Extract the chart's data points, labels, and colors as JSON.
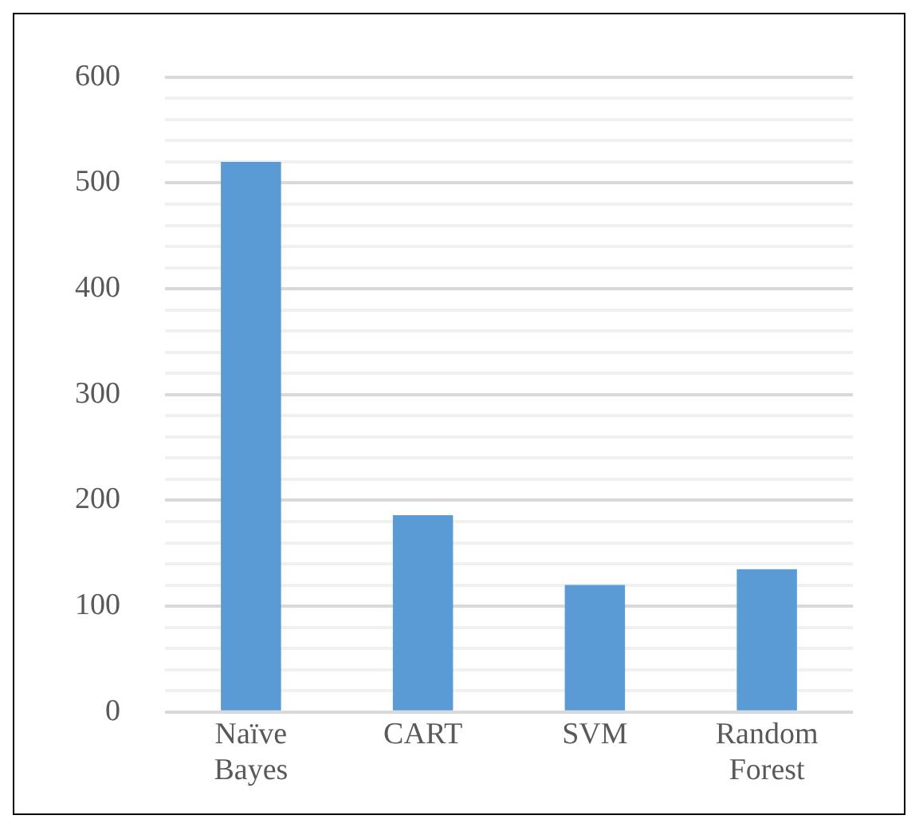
{
  "chart_data": {
    "type": "bar",
    "categories": [
      "Naïve Bayes",
      "CART",
      "SVM",
      "Random Forest"
    ],
    "values": [
      520,
      186,
      120,
      135
    ],
    "color": "#5b9bd5",
    "ylim": [
      0,
      600
    ],
    "yticks": [
      0,
      {
        "value": 20,
        "label": null
      },
      {
        "value": 40,
        "label": null
      },
      {
        "value": 60,
        "label": null
      },
      {
        "value": 80,
        "label": null
      },
      100,
      {
        "value": 120,
        "label": null
      },
      {
        "value": 140,
        "label": null
      },
      {
        "value": 160,
        "label": null
      },
      {
        "value": 180,
        "label": null
      },
      200,
      {
        "value": 220,
        "label": null
      },
      {
        "value": 240,
        "label": null
      },
      {
        "value": 260,
        "label": null
      },
      {
        "value": 280,
        "label": null
      },
      300,
      {
        "value": 320,
        "label": null
      },
      {
        "value": 340,
        "label": null
      },
      {
        "value": 360,
        "label": null
      },
      {
        "value": 380,
        "label": null
      },
      400,
      {
        "value": 420,
        "label": null
      },
      {
        "value": 440,
        "label": null
      },
      {
        "value": 460,
        "label": null
      },
      {
        "value": 480,
        "label": null
      },
      500,
      {
        "value": 520,
        "label": null
      },
      {
        "value": 540,
        "label": null
      },
      {
        "value": 560,
        "label": null
      },
      {
        "value": 580,
        "label": null
      },
      600
    ],
    "grid": "y"
  }
}
